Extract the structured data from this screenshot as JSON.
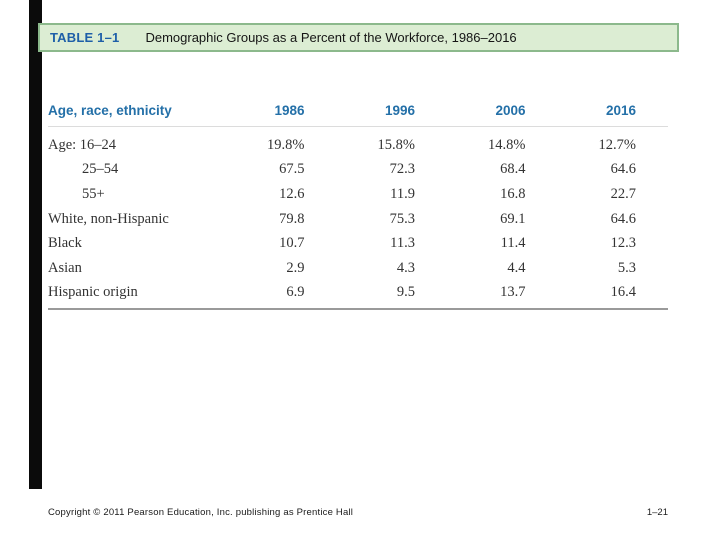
{
  "header": {
    "label": "TABLE 1–1",
    "title": "Demographic Groups as a Percent of the Workforce, 1986–2016"
  },
  "table": {
    "row_header": "Age, race, ethnicity",
    "columns": [
      "1986",
      "1996",
      "2006",
      "2016"
    ],
    "rows": [
      {
        "label": "Age: 16–24",
        "values": [
          "19.8%",
          "15.8%",
          "14.8%",
          "12.7%"
        ]
      },
      {
        "label": "25–54",
        "values": [
          "67.5",
          "72.3",
          "68.4",
          "64.6"
        ]
      },
      {
        "label": "55+",
        "values": [
          "12.6",
          "11.9",
          "16.8",
          "22.7"
        ]
      },
      {
        "label": "White, non-Hispanic",
        "values": [
          "79.8",
          "75.3",
          "69.1",
          "64.6"
        ]
      },
      {
        "label": "Black",
        "values": [
          "10.7",
          "11.3",
          "11.4",
          "12.3"
        ]
      },
      {
        "label": "Asian",
        "values": [
          "2.9",
          "4.3",
          "4.4",
          "5.3"
        ]
      },
      {
        "label": "Hispanic origin",
        "values": [
          "6.9",
          "9.5",
          "13.7",
          "16.4"
        ]
      }
    ]
  },
  "footer": {
    "copyright": "Copyright © 2011 Pearson Education, Inc. publishing as Prentice Hall",
    "page": "1–21"
  },
  "colors": {
    "accent_blue": "#2470A8",
    "caption_blue": "#1E5FA8",
    "caption_fill": "#DCEDD3",
    "caption_border": "#8CB98C"
  }
}
